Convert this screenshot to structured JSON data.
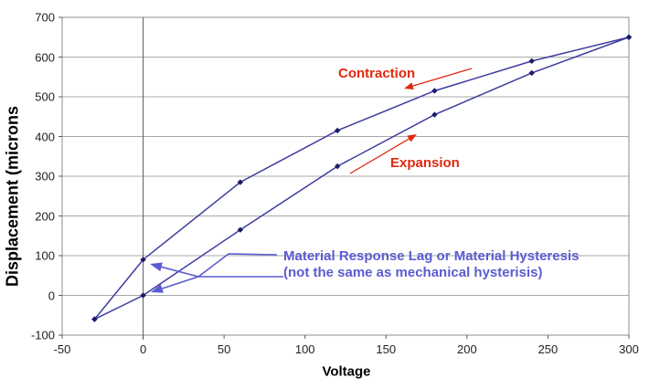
{
  "chart_data": {
    "type": "line",
    "title": "",
    "xlabel": "Voltage",
    "ylabel": "Displacement (microns",
    "xlim": [
      -50,
      300
    ],
    "ylim": [
      -100,
      700
    ],
    "x_ticks": [
      -50,
      0,
      50,
      100,
      150,
      200,
      250,
      300
    ],
    "y_ticks": [
      700,
      600,
      500,
      400,
      300,
      200,
      100,
      0,
      -100
    ],
    "grid": "horizontal-only",
    "legend": "none",
    "line_color": "#3c3c9e",
    "marker_color": "#1b1b6b",
    "series": [
      {
        "name": "Expansion",
        "points": [
          [
            -30,
            -60
          ],
          [
            0,
            0
          ],
          [
            60,
            165
          ],
          [
            120,
            325
          ],
          [
            180,
            455
          ],
          [
            240,
            560
          ],
          [
            300,
            650
          ]
        ]
      },
      {
        "name": "Contraction",
        "points": [
          [
            300,
            650
          ],
          [
            240,
            590
          ],
          [
            180,
            515
          ],
          [
            120,
            415
          ],
          [
            60,
            285
          ],
          [
            0,
            90
          ],
          [
            -30,
            -60
          ]
        ]
      }
    ]
  },
  "annotations": {
    "contraction_label": "Contraction",
    "expansion_label": "Expansion",
    "red_color": "#e02810",
    "hysteresis_note_line1": "Material Response Lag or Material Hysteresis",
    "hysteresis_note_line2": "(not the same as mechanical hysterisis)",
    "note_color": "#5b5bd0"
  }
}
